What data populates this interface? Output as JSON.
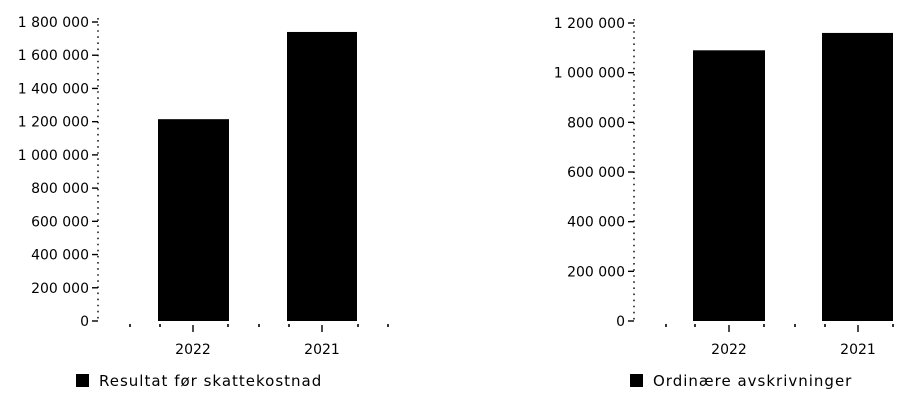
{
  "chart_data": [
    {
      "type": "bar",
      "categories": [
        "2022",
        "2021"
      ],
      "values": [
        1215000,
        1740000
      ],
      "ylim": [
        0,
        1800000
      ],
      "yticks": [
        "0",
        "200 000",
        "400 000",
        "600 000",
        "800 000",
        "1 000 000",
        "1 200 000",
        "1 400 000",
        "1 600 000",
        "1 800 000"
      ],
      "ytick_values": [
        0,
        200000,
        400000,
        600000,
        800000,
        1000000,
        1200000,
        1400000,
        1600000,
        1800000
      ],
      "legend": "Resultat før skattekostnad",
      "legend_position": "bottom-left",
      "bar_color": "#000000",
      "grid": false
    },
    {
      "type": "bar",
      "categories": [
        "2022",
        "2021"
      ],
      "values": [
        1090000,
        1160000
      ],
      "ylim": [
        0,
        1200000
      ],
      "yticks": [
        "0",
        "200 000",
        "400 000",
        "600 000",
        "800 000",
        "1 000 000",
        "1 200 000"
      ],
      "ytick_values": [
        0,
        200000,
        400000,
        600000,
        800000,
        1000000,
        1200000
      ],
      "legend": "Ordinære avskrivninger",
      "legend_position": "bottom-left",
      "bar_color": "#000000",
      "grid": false
    }
  ]
}
